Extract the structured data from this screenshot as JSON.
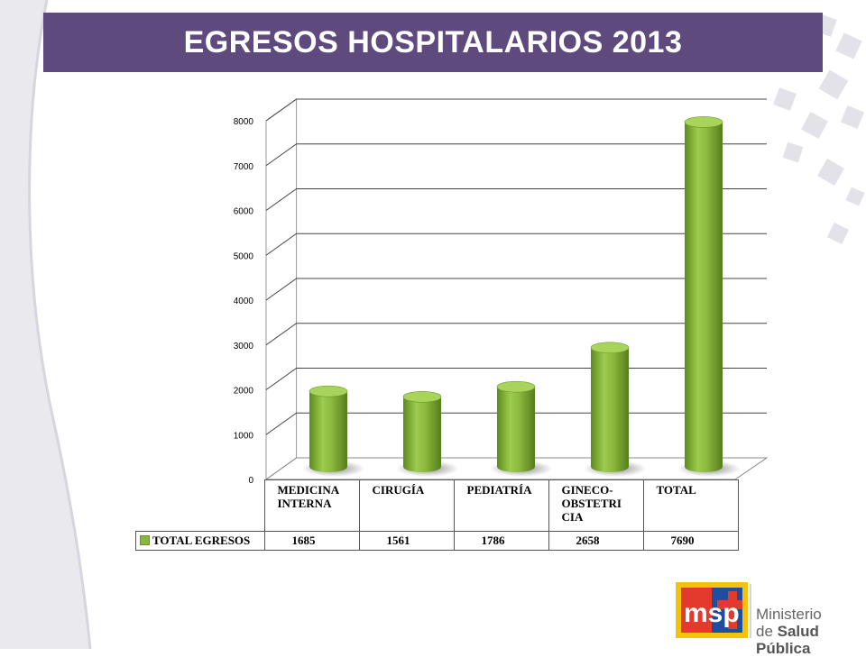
{
  "title": "EGRESOS HOSPITALARIOS 2013",
  "chart_data": {
    "type": "bar",
    "categories": [
      "MEDICINA INTERNA",
      "CIRUGÍA",
      "PEDIATRÍA",
      "GINECO-OBSTETRICIA",
      "TOTAL"
    ],
    "category_lines": [
      [
        "MEDICINA",
        "INTERNA"
      ],
      [
        "CIRUGÍA"
      ],
      [
        "PEDIATRÍA"
      ],
      [
        "GINECO-",
        "OBSTETRI",
        "CIA"
      ],
      [
        "TOTAL"
      ]
    ],
    "series": [
      {
        "name": "TOTAL EGRESOS",
        "values": [
          1685,
          1561,
          1786,
          2658,
          7690
        ]
      }
    ],
    "ylim": [
      0,
      8000
    ],
    "yticks": [
      0,
      1000,
      2000,
      3000,
      4000,
      5000,
      6000,
      7000,
      8000
    ],
    "grid": true,
    "bar_color": "#8ab63d",
    "legend": "data-table"
  },
  "logo": {
    "initials": "msp",
    "line1": "Ministerio",
    "line2_prefix": "de ",
    "line2_bold": "Salud Pública"
  }
}
